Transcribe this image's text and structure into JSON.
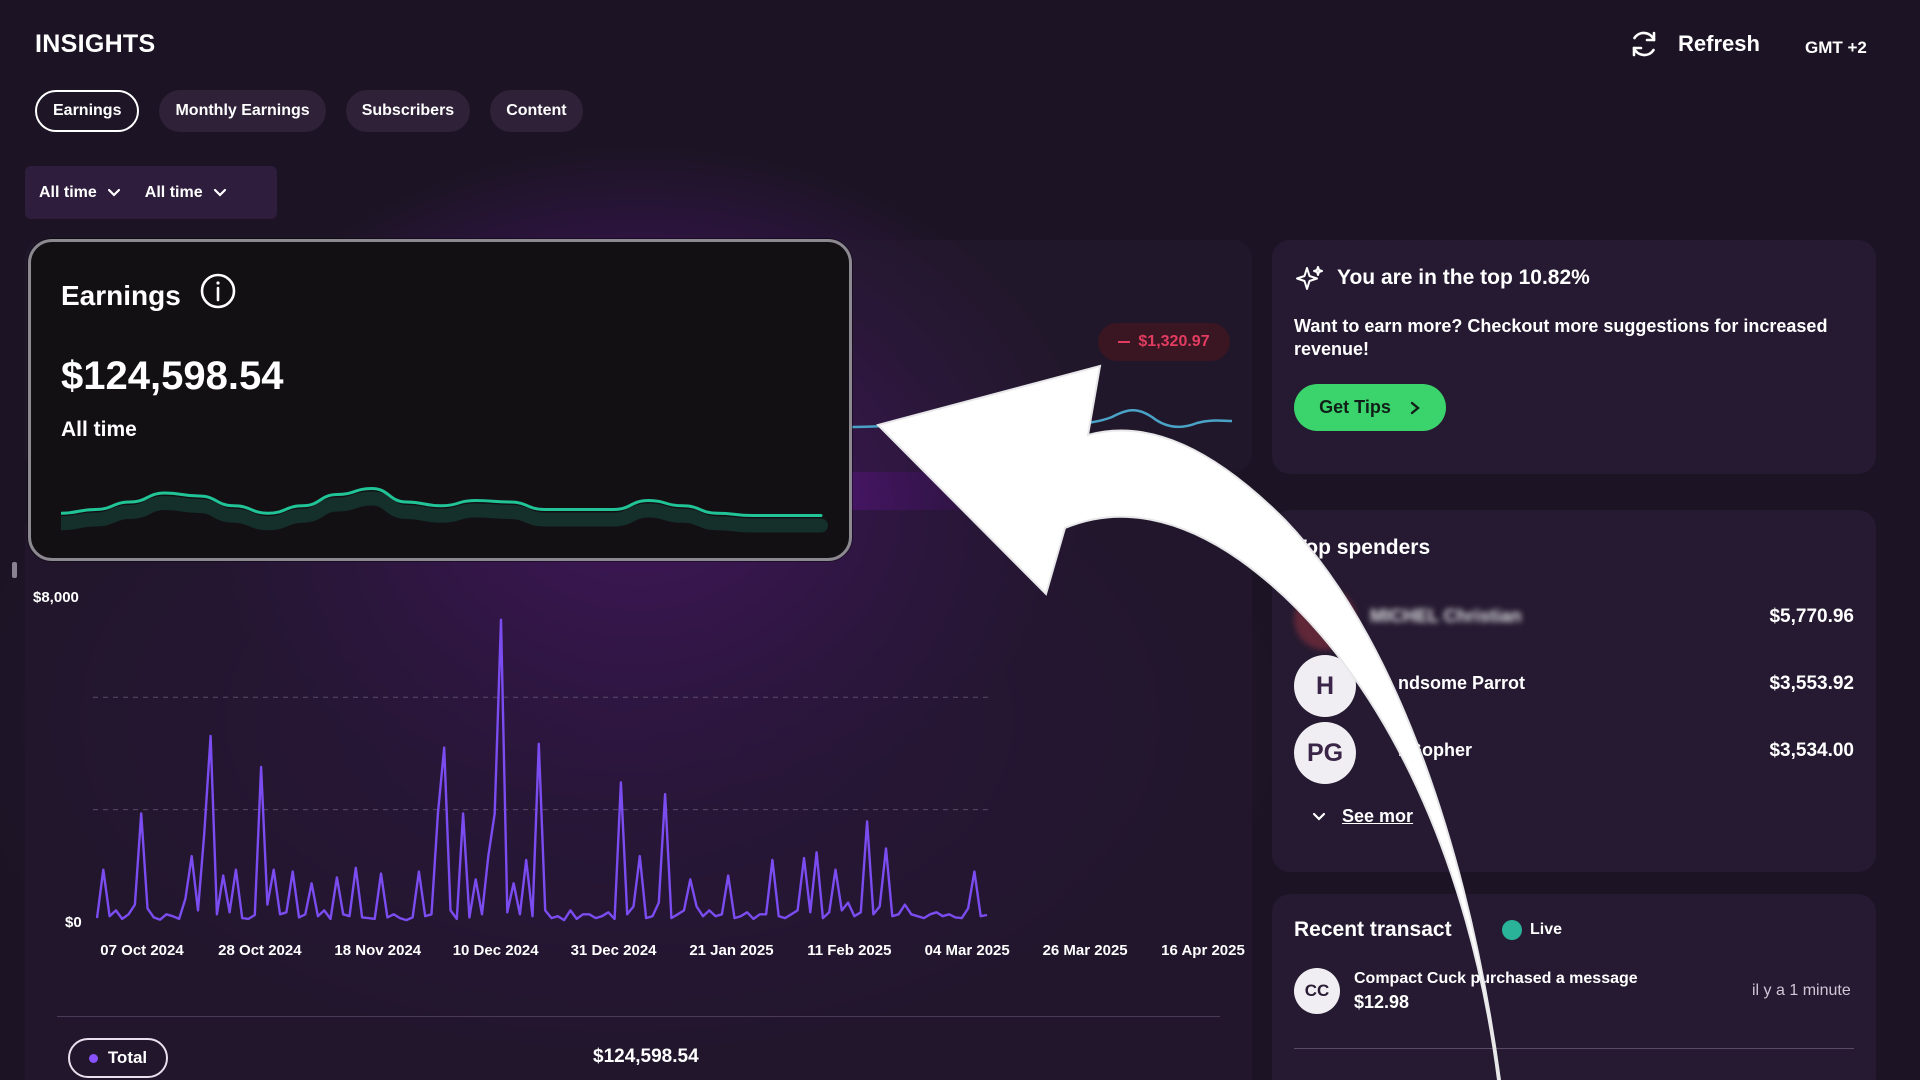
{
  "header": {
    "title": "INSIGHTS",
    "refresh_label": "Refresh",
    "timezone": "GMT +2"
  },
  "tabs": [
    {
      "label": "Earnings",
      "active": true
    },
    {
      "label": "Monthly Earnings",
      "active": false
    },
    {
      "label": "Subscribers",
      "active": false
    },
    {
      "label": "Content",
      "active": false
    }
  ],
  "filters": {
    "period_1": "All time",
    "period_2": "All time"
  },
  "earnings_card": {
    "title": "Earnings",
    "value": "$124,598.54",
    "period": "All time"
  },
  "delta": {
    "value": "$1,320.97",
    "color": "#e23c60"
  },
  "chart_data": {
    "type": "line",
    "y_tick_labels": [
      "$8,000",
      "$0"
    ],
    "ylim": [
      0,
      8000
    ],
    "x_tick_labels": [
      "07 Oct 2024",
      "28 Oct 2024",
      "18 Nov 2024",
      "10 Dec 2024",
      "31 Dec 2024",
      "21 Jan 2025",
      "11 Feb 2025",
      "04 Mar 2025",
      "26 Mar 2025",
      "16 Apr 2025"
    ],
    "series": [
      {
        "color": "#7b4cf0",
        "values": [
          100,
          1350,
          150,
          300,
          80,
          200,
          450,
          2800,
          350,
          120,
          60,
          200,
          150,
          80,
          600,
          1700,
          300,
          2300,
          4800,
          200,
          1200,
          250,
          1350,
          100,
          80,
          180,
          4000,
          450,
          1350,
          200,
          250,
          1300,
          120,
          200,
          1000,
          150,
          300,
          80,
          1150,
          200,
          150,
          1400,
          120,
          100,
          80,
          1250,
          120,
          200,
          100,
          50,
          120,
          1300,
          150,
          200,
          2800,
          4500,
          300,
          80,
          2800,
          120,
          1100,
          200,
          1700,
          2800,
          7800,
          250,
          1000,
          200,
          1600,
          150,
          4600,
          300,
          100,
          150,
          50,
          300,
          80,
          200,
          200,
          100,
          150,
          250,
          80,
          3600,
          200,
          400,
          1700,
          100,
          150,
          500,
          3300,
          100,
          200,
          300,
          1100,
          400,
          150,
          300,
          150,
          200,
          1200,
          100,
          150,
          250,
          80,
          200,
          200,
          1600,
          150,
          100,
          200,
          300,
          1650,
          250,
          1800,
          100,
          250,
          1350,
          300,
          500,
          150,
          250,
          2600,
          200,
          400,
          1900,
          150,
          200,
          450,
          200,
          150,
          100,
          200,
          250,
          150,
          200,
          120,
          100,
          350,
          1300,
          150,
          180
        ],
        "grid_values": [
          0,
          2900,
          5800,
          8000
        ]
      }
    ],
    "total_label": "Total",
    "total_value": "$124,598.54"
  },
  "earnings_sparkline": [
    0.45,
    0.5,
    0.6,
    0.72,
    0.68,
    0.55,
    0.45,
    0.55,
    0.7,
    0.78,
    0.6,
    0.55,
    0.62,
    0.6,
    0.5,
    0.5,
    0.5,
    0.62,
    0.55,
    0.45,
    0.42,
    0.42,
    0.42
  ],
  "tips": {
    "title": "You are in the top 10.82%",
    "body": "Want to earn more? Checkout more suggestions for increased revenue!",
    "button": "Get Tips"
  },
  "top_spenders": {
    "title": "Top spenders",
    "items": [
      {
        "initials": "",
        "name": "MICHEL Christian",
        "amount": "$5,770.96",
        "blurred": true
      },
      {
        "initials": "H",
        "name": "ndsome Parrot",
        "amount": "$3,553.92",
        "blurred": false
      },
      {
        "initials": "PG",
        "name": "l Gopher",
        "amount": "$3,534.00",
        "blurred": false
      }
    ],
    "see_more": "See mor"
  },
  "transactions": {
    "title": "Recent transact",
    "live_label": "Live",
    "items": [
      {
        "initials": "CC",
        "text": "Compact Cuck   purchased a message",
        "amount": "$12.98",
        "time": "il y a 1 minute"
      }
    ]
  }
}
